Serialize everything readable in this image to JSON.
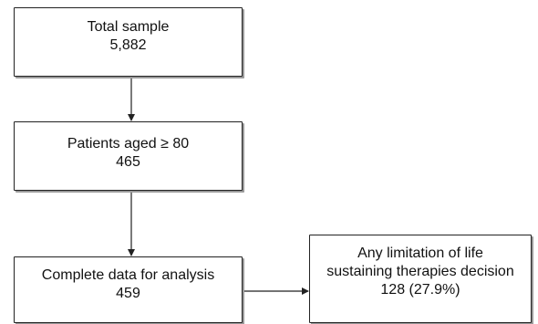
{
  "flowchart": {
    "nodes": [
      {
        "id": "total",
        "lines": [
          "Total sample",
          "5,882"
        ]
      },
      {
        "id": "aged",
        "lines": [
          "Patients aged ≥ 80",
          "465"
        ]
      },
      {
        "id": "complete",
        "lines": [
          "Complete data for analysis",
          "459"
        ]
      },
      {
        "id": "limitation",
        "lines": [
          "Any limitation of life",
          "sustaining therapies decision",
          "128 (27.9%)"
        ]
      }
    ],
    "edges": [
      {
        "from": "total",
        "to": "aged"
      },
      {
        "from": "aged",
        "to": "complete"
      },
      {
        "from": "complete",
        "to": "limitation"
      }
    ]
  }
}
